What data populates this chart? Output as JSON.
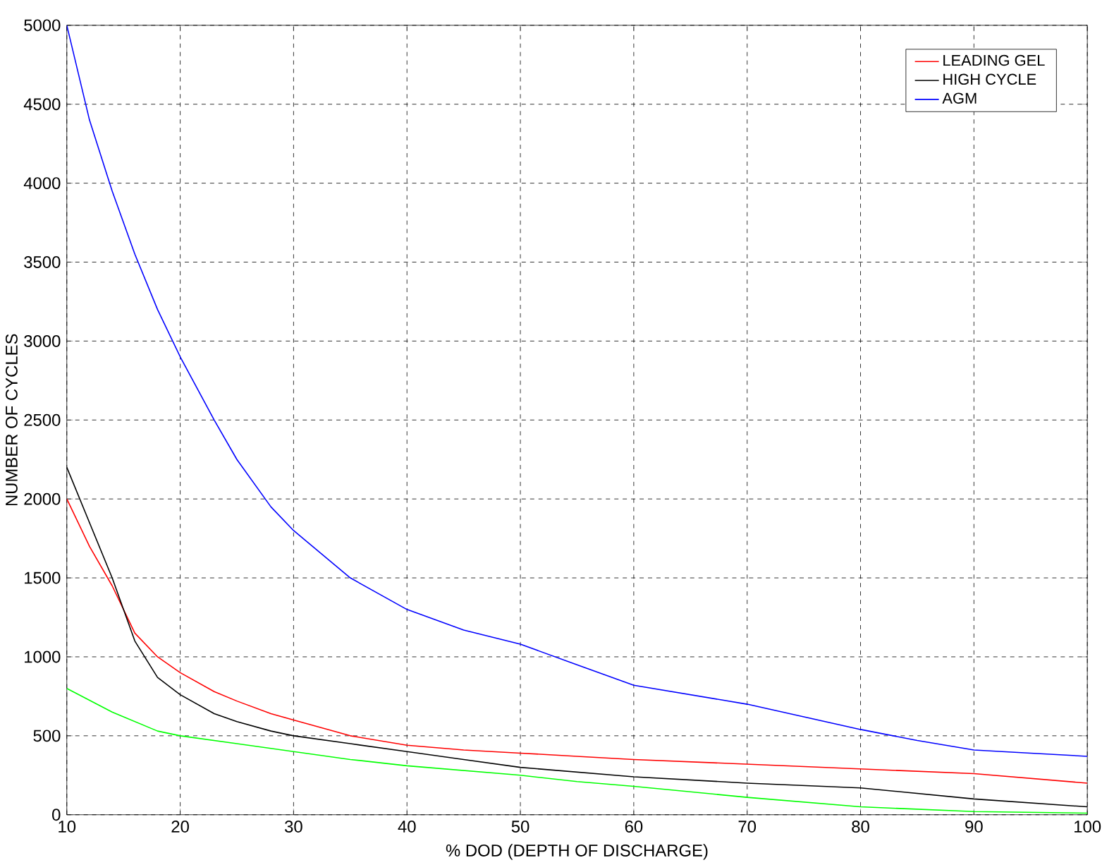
{
  "chart_data": {
    "type": "line",
    "xlabel": "% DOD (DEPTH OF DISCHARGE)",
    "ylabel": "NUMBER OF CYCLES",
    "xlim": [
      10,
      100
    ],
    "ylim": [
      0,
      5000
    ],
    "xticks": [
      10,
      20,
      30,
      40,
      50,
      60,
      70,
      80,
      90,
      100
    ],
    "yticks": [
      0,
      500,
      1000,
      1500,
      2000,
      2500,
      3000,
      3500,
      4000,
      4500,
      5000
    ],
    "grid": true,
    "legend": "top right",
    "line_style": "solid",
    "marker": "none",
    "series": [
      {
        "name": "LEADING GEL",
        "color": "#ff0000",
        "x": [
          10,
          12,
          14,
          16,
          18,
          20,
          23,
          25,
          28,
          30,
          35,
          40,
          45,
          50,
          55,
          60,
          70,
          80,
          90,
          100
        ],
        "values": [
          2000,
          1700,
          1450,
          1150,
          1000,
          900,
          780,
          720,
          640,
          600,
          500,
          440,
          410,
          390,
          370,
          350,
          320,
          290,
          260,
          200
        ]
      },
      {
        "color": "#00ff00",
        "x": [
          10,
          14,
          18,
          20,
          25,
          30,
          35,
          40,
          45,
          50,
          55,
          60,
          70,
          80,
          90,
          100
        ],
        "values": [
          800,
          650,
          530,
          500,
          450,
          400,
          350,
          310,
          280,
          250,
          210,
          180,
          110,
          50,
          20,
          10
        ]
      },
      {
        "name": "HIGH CYCLE",
        "color": "#000000",
        "x": [
          10,
          12,
          14,
          16,
          18,
          20,
          23,
          25,
          28,
          30,
          35,
          40,
          45,
          50,
          55,
          60,
          70,
          80,
          90,
          100
        ],
        "values": [
          2200,
          1850,
          1500,
          1100,
          870,
          760,
          640,
          590,
          530,
          500,
          450,
          400,
          350,
          300,
          270,
          240,
          200,
          170,
          100,
          50
        ]
      },
      {
        "name": "AGM",
        "color": "#0000ff",
        "x": [
          10,
          12,
          14,
          16,
          18,
          20,
          23,
          25,
          28,
          30,
          35,
          40,
          45,
          50,
          55,
          60,
          65,
          70,
          75,
          80,
          85,
          90,
          95,
          100
        ],
        "values": [
          5000,
          4400,
          3950,
          3550,
          3200,
          2900,
          2500,
          2250,
          1950,
          1800,
          1500,
          1300,
          1170,
          1080,
          950,
          820,
          760,
          700,
          620,
          540,
          470,
          410,
          390,
          370
        ]
      }
    ]
  }
}
